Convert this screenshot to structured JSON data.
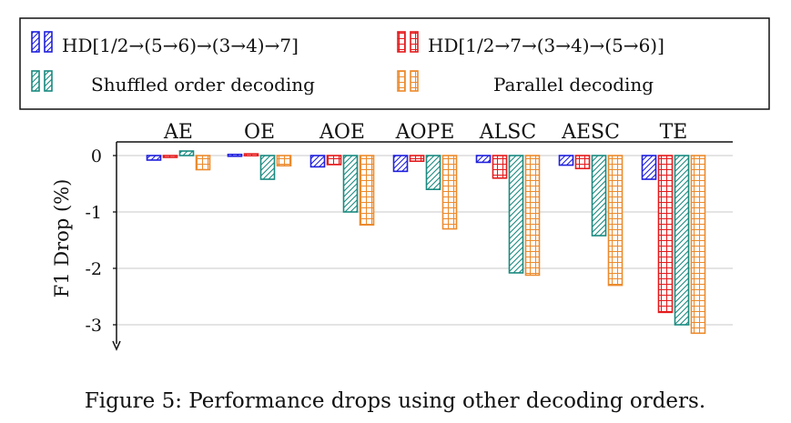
{
  "chart_data": {
    "type": "bar",
    "categories": [
      "AE",
      "OE",
      "AOE",
      "AOPE",
      "ALSC",
      "AESC",
      "TE"
    ],
    "series": [
      {
        "name": "HD[1/2→(5→6)→(3→4)→7]",
        "color": "#1f1fdd",
        "pattern": "diagonal",
        "values": [
          -0.08,
          0.02,
          -0.2,
          -0.28,
          -0.12,
          -0.17,
          -0.42
        ]
      },
      {
        "name": "HD[1/2→7→(3→4)→(5→6)]",
        "color": "#e41a1c",
        "pattern": "grid",
        "values": [
          -0.02,
          0.03,
          -0.16,
          -0.1,
          -0.4,
          -0.23,
          -2.78
        ]
      },
      {
        "name": "Shuffled order decoding",
        "color": "#1a8a80",
        "pattern": "diagonal",
        "values": [
          0.08,
          -0.42,
          -1.0,
          -0.6,
          -2.08,
          -1.42,
          -3.0
        ]
      },
      {
        "name": "Parallel decoding",
        "color": "#ec8a2c",
        "pattern": "grid",
        "values": [
          -0.25,
          -0.18,
          -1.23,
          -1.3,
          -2.12,
          -2.3,
          -3.15
        ]
      }
    ],
    "ylabel": "F1 Drop (%)",
    "yticks": [
      0,
      -1,
      -2,
      -3
    ],
    "ytick_labels": [
      "0",
      "-1",
      "-2",
      "-3"
    ],
    "ylim": [
      -3.3,
      0.25
    ],
    "grid": true,
    "legend_position": "top"
  },
  "caption": "Figure 5: Performance drops using other decoding orders."
}
